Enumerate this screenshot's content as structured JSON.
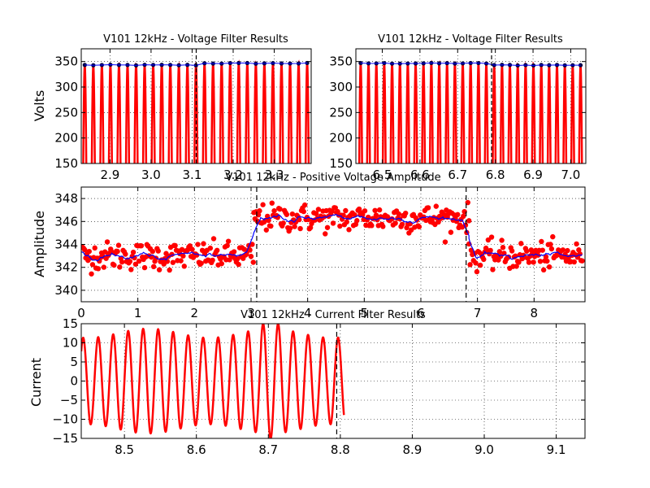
{
  "chart_data": [
    {
      "type": "line",
      "title": "V101 12kHz - Voltage Filter Results",
      "xlabel": "",
      "ylabel": "Volts",
      "xlim": [
        2.83,
        3.39
      ],
      "ylim": [
        150,
        375
      ],
      "xticks": [
        2.9,
        3.0,
        3.1,
        3.2,
        3.3
      ],
      "xtick_labels": [
        "2.9",
        "3.0",
        "3.1",
        "3.2",
        "3.3"
      ],
      "yticks": [
        150,
        200,
        250,
        300,
        350
      ],
      "ytick_labels": [
        "150",
        "200",
        "250",
        "300",
        "350"
      ],
      "grid": true,
      "signal": {
        "frequency_cycles_per_unit": 48,
        "amplitude_before": 343,
        "amplitude_after": 346.5,
        "step_at": 3.11,
        "color": "#ff0000"
      },
      "peak_marker_color": "#000044",
      "peak_line_color": "#0000ff",
      "step_marker_x": 3.11
    },
    {
      "type": "line",
      "title": "V101 12kHz - Voltage Filter Results",
      "xlabel": "",
      "ylabel": "",
      "xlim": [
        6.43,
        7.04
      ],
      "ylim": [
        150,
        375
      ],
      "xticks": [
        6.5,
        6.6,
        6.7,
        6.8,
        6.9,
        7.0
      ],
      "xtick_labels": [
        "6.5",
        "6.6",
        "6.7",
        "6.8",
        "6.9",
        "7.0"
      ],
      "yticks": [
        150,
        200,
        250,
        300,
        350
      ],
      "ytick_labels": [
        "150",
        "200",
        "250",
        "300",
        "350"
      ],
      "grid": true,
      "signal": {
        "frequency_cycles_per_unit": 48,
        "amplitude_before": 346.5,
        "amplitude_after": 343,
        "step_at": 6.79,
        "color": "#ff0000"
      },
      "peak_marker_color": "#000044",
      "peak_line_color": "#0000ff",
      "step_marker_x": 6.79
    },
    {
      "type": "scatter",
      "title": "V101 12kHz - Positive Voltage Amplitude",
      "xlabel": "",
      "ylabel": "Amplitude",
      "xlim": [
        0,
        8.9
      ],
      "ylim": [
        339,
        349
      ],
      "xticks": [
        0,
        1,
        2,
        3,
        4,
        5,
        6,
        7,
        8
      ],
      "xtick_labels": [
        "0",
        "1",
        "2",
        "3",
        "4",
        "5",
        "6",
        "7",
        "8"
      ],
      "yticks": [
        340,
        342,
        344,
        346,
        348
      ],
      "ytick_labels": [
        "340",
        "342",
        "344",
        "346",
        "348"
      ],
      "grid": true,
      "segments": [
        {
          "x_range": [
            0.0,
            3.05
          ],
          "mean": 343.0
        },
        {
          "x_range": [
            3.05,
            6.85
          ],
          "mean": 346.3
        },
        {
          "x_range": [
            6.85,
            8.85
          ],
          "mean": 343.0
        }
      ],
      "point_spacing": 0.02,
      "point_color": "#ff0000",
      "smoothed_line_color": "#0000ff",
      "vertical_markers": [
        3.1,
        6.8
      ]
    },
    {
      "type": "line",
      "title": "V101 12kHz - Current Filter Results",
      "xlabel": "",
      "ylabel": "Current",
      "xlim": [
        8.44,
        9.14
      ],
      "ylim": [
        -15,
        15
      ],
      "xticks": [
        8.5,
        8.6,
        8.7,
        8.8,
        8.9,
        9.0,
        9.1
      ],
      "xtick_labels": [
        "8.5",
        "8.6",
        "8.7",
        "8.8",
        "8.9",
        "9.0",
        "9.1"
      ],
      "yticks": [
        -15,
        -10,
        -5,
        0,
        5,
        10,
        15
      ],
      "ytick_labels": [
        "−15",
        "−10",
        "−5",
        "0",
        "5",
        "10",
        "15"
      ],
      "grid": true,
      "signal": {
        "frequency_cycles_per_unit": 48,
        "amplitude": 12.5,
        "x_end": 8.805,
        "color": "#ff0000"
      },
      "vertical_marker": 8.795
    }
  ]
}
